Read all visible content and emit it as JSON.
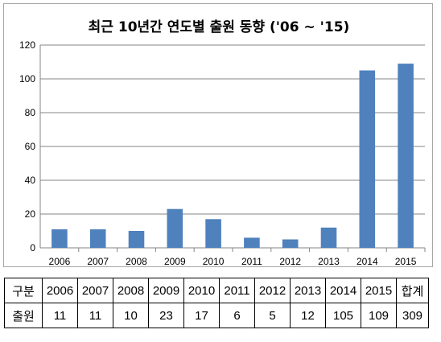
{
  "chart_data": {
    "type": "bar",
    "title": "최근 10년간 연도별 출원 동향 ('06 ~ '15)",
    "categories": [
      "2006",
      "2007",
      "2008",
      "2009",
      "2010",
      "2011",
      "2012",
      "2013",
      "2014",
      "2015"
    ],
    "values": [
      11,
      11,
      10,
      23,
      17,
      6,
      5,
      12,
      105,
      109
    ],
    "xlabel": "",
    "ylabel": "",
    "ylim": [
      0,
      120
    ],
    "yticks": [
      "0",
      "20",
      "40",
      "60",
      "80",
      "100",
      "120"
    ],
    "grid": true,
    "bar_color": "#4f81bd"
  },
  "table": {
    "header_label": "구분",
    "row_label": "출원",
    "years": [
      "2006",
      "2007",
      "2008",
      "2009",
      "2010",
      "2011",
      "2012",
      "2013",
      "2014",
      "2015"
    ],
    "counts": [
      "11",
      "11",
      "10",
      "23",
      "17",
      "6",
      "5",
      "12",
      "105",
      "109"
    ],
    "total_label": "합계",
    "total_value": "309"
  }
}
